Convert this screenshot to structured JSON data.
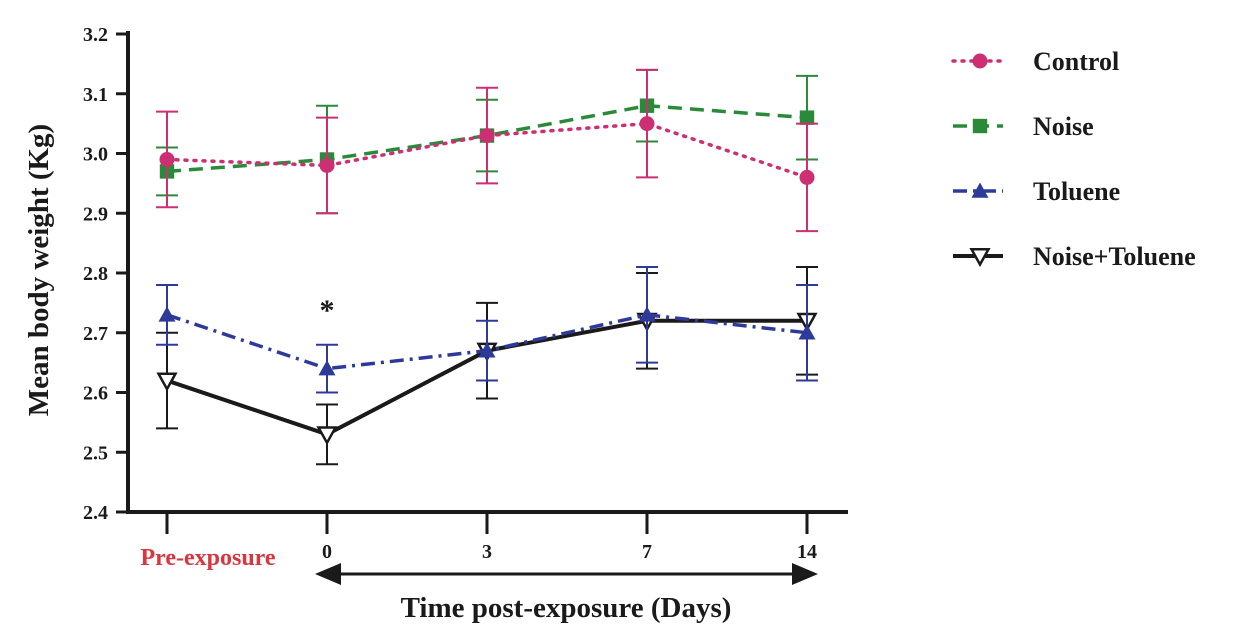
{
  "chart_data": {
    "type": "line",
    "ylabel": "Mean body weight (Kg)",
    "xlabel": "Time post-exposure (Days)",
    "categories": [
      "Pre-exposure",
      "0",
      "3",
      "7",
      "14"
    ],
    "ylim": [
      2.4,
      3.2
    ],
    "yticks": [
      "2.4",
      "2.5",
      "2.6",
      "2.7",
      "2.8",
      "2.9",
      "3.0",
      "3.1",
      "3.2"
    ],
    "pre_exposure_color": "#d9363e",
    "significance_marker": {
      "category": "0",
      "label": "*"
    },
    "series": [
      {
        "name": "Control",
        "color": "#cc2f72",
        "line": "dotted",
        "marker": "circle",
        "values": [
          2.99,
          2.98,
          3.03,
          3.05,
          2.96
        ],
        "errors": [
          0.08,
          0.08,
          0.08,
          0.09,
          0.09
        ]
      },
      {
        "name": "Noise",
        "color": "#2a8a3a",
        "line": "dashed",
        "marker": "square",
        "values": [
          2.97,
          2.99,
          3.03,
          3.08,
          3.06
        ],
        "errors": [
          0.04,
          0.09,
          0.06,
          0.06,
          0.07
        ]
      },
      {
        "name": "Toluene",
        "color": "#2e3a9a",
        "line": "dashdot",
        "marker": "triangle",
        "values": [
          2.73,
          2.64,
          2.67,
          2.73,
          2.7
        ],
        "errors": [
          0.05,
          0.04,
          0.05,
          0.08,
          0.08
        ]
      },
      {
        "name": "Noise+Toluene",
        "color": "#1a1a1a",
        "line": "solid",
        "marker": "triangle-down-open",
        "values": [
          2.62,
          2.53,
          2.67,
          2.72,
          2.72
        ],
        "errors": [
          0.08,
          0.05,
          0.08,
          0.08,
          0.09
        ]
      }
    ]
  }
}
